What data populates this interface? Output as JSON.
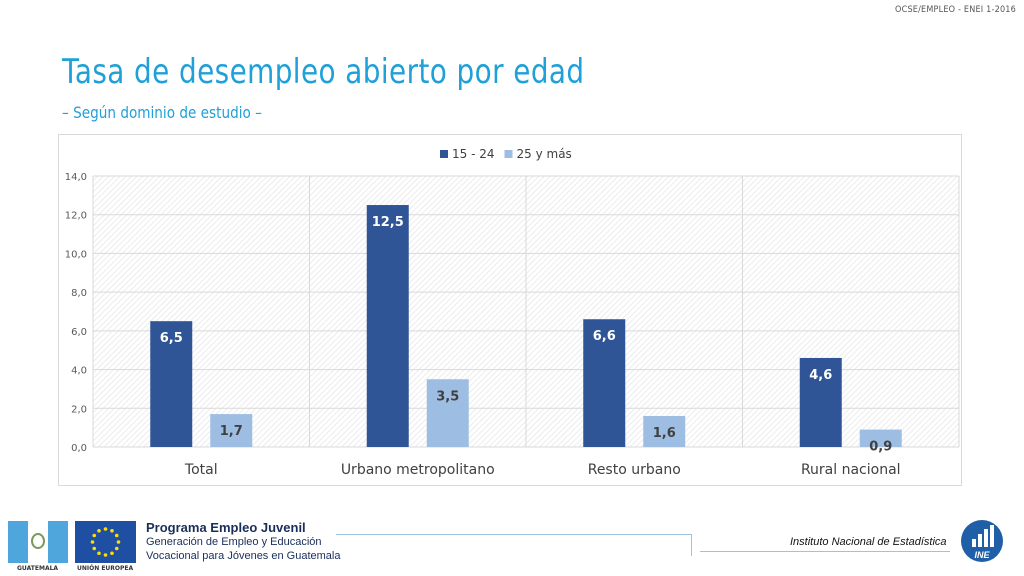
{
  "header": {
    "reference": "OCSE/EMPLEO - ENEI 1-2016",
    "title": "Tasa de desempleo abierto por edad",
    "subtitle": "– Según dominio de estudio –"
  },
  "chart_data": {
    "type": "bar",
    "title": "",
    "xlabel": "",
    "ylabel": "",
    "ylim": [
      0,
      14
    ],
    "yticks": [
      "0,0",
      "2,0",
      "4,0",
      "6,0",
      "8,0",
      "10,0",
      "12,0",
      "14,0"
    ],
    "grid": true,
    "legend_position": "top-center",
    "categories": [
      "Total",
      "Urbano metropolitano",
      "Resto urbano",
      "Rural nacional"
    ],
    "series": [
      {
        "name": "15 - 24",
        "color": "#2f5597",
        "values": [
          6.5,
          12.5,
          6.6,
          4.6
        ],
        "labels": [
          "6,5",
          "12,5",
          "6,6",
          "4,6"
        ]
      },
      {
        "name": "25 y más",
        "color": "#9dbde3",
        "values": [
          1.7,
          3.5,
          1.6,
          0.9
        ],
        "labels": [
          "1,7",
          "3,5",
          "1,6",
          "0,9"
        ]
      }
    ]
  },
  "footer": {
    "flag_gt_label": "GUATEMALA",
    "flag_eu_label": "UNIÓN EUROPEA",
    "program_title": "Programa Empleo Juvenil",
    "program_line1": "Generación de Empleo y Educación",
    "program_line2": "Vocacional para Jóvenes en Guatemala",
    "institute": "Instituto Nacional de Estadística",
    "ine_logo_text": "INE"
  },
  "colors": {
    "title": "#1fa0d8",
    "ine_blue": "#1f5fa8"
  }
}
